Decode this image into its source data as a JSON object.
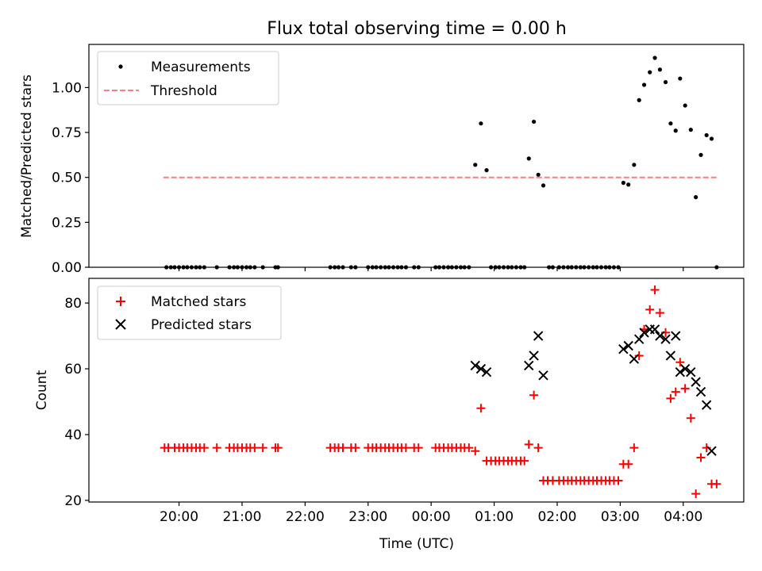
{
  "figure": {
    "title": "Flux total observing time = 0.00 h",
    "xlabel": "Time (UTC)"
  },
  "chart_data": [
    {
      "type": "scatter",
      "title": "Flux total observing time = 0.00 h",
      "ylabel": "Matched/Predicted stars",
      "xlabel": "",
      "x_unit": "hours since 00:00 UTC",
      "xlim": [
        -5.43,
        4.96
      ],
      "ylim": [
        0,
        1.24
      ],
      "yticks": [
        0.0,
        0.25,
        0.5,
        0.75,
        1.0
      ],
      "ytick_labels": [
        "0.00",
        "0.25",
        "0.50",
        "0.75",
        "1.00"
      ],
      "grid": false,
      "legend_position": "top-left",
      "series": [
        {
          "name": "Measurements",
          "kind": "scatter",
          "marker": "dot",
          "color": "#000000",
          "points": [
            [
              -4.2,
              0
            ],
            [
              -4.13,
              0
            ],
            [
              -4.07,
              0
            ],
            [
              -4.0,
              0
            ],
            [
              -3.93,
              0
            ],
            [
              -3.87,
              0
            ],
            [
              -3.8,
              0
            ],
            [
              -3.73,
              0
            ],
            [
              -3.67,
              0
            ],
            [
              -3.6,
              0
            ],
            [
              -3.4,
              0
            ],
            [
              -3.2,
              0
            ],
            [
              -3.13,
              0
            ],
            [
              -3.07,
              0
            ],
            [
              -3.0,
              0
            ],
            [
              -2.93,
              0
            ],
            [
              -2.87,
              0
            ],
            [
              -2.8,
              0
            ],
            [
              -2.67,
              0
            ],
            [
              -2.47,
              0
            ],
            [
              -2.43,
              0
            ],
            [
              -1.6,
              0
            ],
            [
              -1.53,
              0
            ],
            [
              -1.47,
              0
            ],
            [
              -1.4,
              0
            ],
            [
              -1.27,
              0
            ],
            [
              -1.2,
              0
            ],
            [
              -1.0,
              0
            ],
            [
              -0.93,
              0
            ],
            [
              -0.87,
              0
            ],
            [
              -0.8,
              0
            ],
            [
              -0.73,
              0
            ],
            [
              -0.67,
              0
            ],
            [
              -0.6,
              0
            ],
            [
              -0.53,
              0
            ],
            [
              -0.47,
              0
            ],
            [
              -0.4,
              0
            ],
            [
              -0.27,
              0
            ],
            [
              -0.2,
              0
            ],
            [
              0.07,
              0
            ],
            [
              0.13,
              0
            ],
            [
              0.2,
              0
            ],
            [
              0.27,
              0
            ],
            [
              0.33,
              0
            ],
            [
              0.4,
              0
            ],
            [
              0.47,
              0
            ],
            [
              0.53,
              0
            ],
            [
              0.6,
              0
            ],
            [
              0.7,
              0.57
            ],
            [
              0.79,
              0.8
            ],
            [
              0.88,
              0.54
            ],
            [
              0.95,
              0
            ],
            [
              1.02,
              0
            ],
            [
              1.08,
              0
            ],
            [
              1.15,
              0
            ],
            [
              1.22,
              0
            ],
            [
              1.28,
              0
            ],
            [
              1.35,
              0
            ],
            [
              1.42,
              0
            ],
            [
              1.48,
              0
            ],
            [
              1.55,
              0.605
            ],
            [
              1.63,
              0.81
            ],
            [
              1.7,
              0.515
            ],
            [
              1.78,
              0.455
            ],
            [
              1.87,
              0
            ],
            [
              1.93,
              0
            ],
            [
              2.03,
              0
            ],
            [
              2.1,
              0
            ],
            [
              2.17,
              0
            ],
            [
              2.23,
              0
            ],
            [
              2.3,
              0
            ],
            [
              2.37,
              0
            ],
            [
              2.43,
              0
            ],
            [
              2.5,
              0
            ],
            [
              2.57,
              0
            ],
            [
              2.63,
              0
            ],
            [
              2.7,
              0
            ],
            [
              2.77,
              0
            ],
            [
              2.83,
              0
            ],
            [
              2.9,
              0
            ],
            [
              2.97,
              0
            ],
            [
              3.05,
              0.47
            ],
            [
              3.13,
              0.46
            ],
            [
              3.22,
              0.57
            ],
            [
              3.3,
              0.93
            ],
            [
              3.38,
              1.015
            ],
            [
              3.47,
              1.085
            ],
            [
              3.55,
              1.165
            ],
            [
              3.63,
              1.1
            ],
            [
              3.72,
              1.03
            ],
            [
              3.8,
              0.8
            ],
            [
              3.88,
              0.76
            ],
            [
              3.95,
              1.05
            ],
            [
              4.03,
              0.9
            ],
            [
              4.12,
              0.765
            ],
            [
              4.2,
              0.39
            ],
            [
              4.28,
              0.625
            ],
            [
              4.37,
              0.735
            ],
            [
              4.45,
              0.715
            ],
            [
              4.53,
              0
            ]
          ]
        },
        {
          "name": "Threshold",
          "kind": "line",
          "style": "dashed",
          "color": "#ff7f7f",
          "x": [
            -4.25,
            4.55
          ],
          "y": [
            0.5,
            0.5
          ]
        }
      ]
    },
    {
      "type": "scatter",
      "title": "",
      "ylabel": "Count",
      "xlabel": "Time (UTC)",
      "x_unit": "hours since 00:00 UTC",
      "xlim": [
        -5.43,
        4.96
      ],
      "ylim": [
        19.5,
        87.5
      ],
      "yticks": [
        20,
        40,
        60,
        80
      ],
      "ytick_labels": [
        "20",
        "40",
        "60",
        "80"
      ],
      "xticks": [
        -4,
        -3,
        -2,
        -1,
        0,
        1,
        2,
        3,
        4
      ],
      "xtick_labels": [
        "20:00",
        "21:00",
        "22:00",
        "23:00",
        "00:00",
        "01:00",
        "02:00",
        "03:00",
        "04:00"
      ],
      "grid": false,
      "legend_position": "top-left",
      "series": [
        {
          "name": "Matched stars",
          "kind": "scatter",
          "marker": "plus",
          "color": "#ff0000",
          "points": [
            [
              -4.23,
              36
            ],
            [
              -4.17,
              36
            ],
            [
              -4.07,
              36
            ],
            [
              -4.0,
              36
            ],
            [
              -3.93,
              36
            ],
            [
              -3.87,
              36
            ],
            [
              -3.8,
              36
            ],
            [
              -3.73,
              36
            ],
            [
              -3.67,
              36
            ],
            [
              -3.6,
              36
            ],
            [
              -3.4,
              36
            ],
            [
              -3.2,
              36
            ],
            [
              -3.13,
              36
            ],
            [
              -3.07,
              36
            ],
            [
              -3.0,
              36
            ],
            [
              -2.93,
              36
            ],
            [
              -2.87,
              36
            ],
            [
              -2.8,
              36
            ],
            [
              -2.67,
              36
            ],
            [
              -2.47,
              36
            ],
            [
              -2.43,
              36
            ],
            [
              -1.6,
              36
            ],
            [
              -1.53,
              36
            ],
            [
              -1.47,
              36
            ],
            [
              -1.4,
              36
            ],
            [
              -1.27,
              36
            ],
            [
              -1.2,
              36
            ],
            [
              -1.0,
              36
            ],
            [
              -0.93,
              36
            ],
            [
              -0.87,
              36
            ],
            [
              -0.8,
              36
            ],
            [
              -0.73,
              36
            ],
            [
              -0.67,
              36
            ],
            [
              -0.6,
              36
            ],
            [
              -0.53,
              36
            ],
            [
              -0.47,
              36
            ],
            [
              -0.4,
              36
            ],
            [
              -0.27,
              36
            ],
            [
              -0.2,
              36
            ],
            [
              0.07,
              36
            ],
            [
              0.13,
              36
            ],
            [
              0.2,
              36
            ],
            [
              0.27,
              36
            ],
            [
              0.33,
              36
            ],
            [
              0.4,
              36
            ],
            [
              0.47,
              36
            ],
            [
              0.53,
              36
            ],
            [
              0.6,
              36
            ],
            [
              0.7,
              35
            ],
            [
              0.79,
              48
            ],
            [
              0.88,
              32
            ],
            [
              0.95,
              32
            ],
            [
              1.02,
              32
            ],
            [
              1.08,
              32
            ],
            [
              1.15,
              32
            ],
            [
              1.22,
              32
            ],
            [
              1.28,
              32
            ],
            [
              1.35,
              32
            ],
            [
              1.42,
              32
            ],
            [
              1.48,
              32
            ],
            [
              1.55,
              37
            ],
            [
              1.63,
              52
            ],
            [
              1.7,
              36
            ],
            [
              1.78,
              26
            ],
            [
              1.85,
              26
            ],
            [
              1.93,
              26
            ],
            [
              2.03,
              26
            ],
            [
              2.1,
              26
            ],
            [
              2.17,
              26
            ],
            [
              2.23,
              26
            ],
            [
              2.3,
              26
            ],
            [
              2.37,
              26
            ],
            [
              2.43,
              26
            ],
            [
              2.5,
              26
            ],
            [
              2.57,
              26
            ],
            [
              2.63,
              26
            ],
            [
              2.7,
              26
            ],
            [
              2.77,
              26
            ],
            [
              2.83,
              26
            ],
            [
              2.9,
              26
            ],
            [
              2.97,
              26
            ],
            [
              3.05,
              31
            ],
            [
              3.13,
              31
            ],
            [
              3.22,
              36
            ],
            [
              3.3,
              64
            ],
            [
              3.38,
              72
            ],
            [
              3.47,
              78
            ],
            [
              3.55,
              84
            ],
            [
              3.63,
              77
            ],
            [
              3.72,
              71
            ],
            [
              3.8,
              51
            ],
            [
              3.88,
              53
            ],
            [
              3.95,
              62
            ],
            [
              4.03,
              54
            ],
            [
              4.12,
              45
            ],
            [
              4.2,
              22
            ],
            [
              4.28,
              33
            ],
            [
              4.37,
              36
            ],
            [
              4.45,
              25
            ],
            [
              4.53,
              25
            ]
          ]
        },
        {
          "name": "Predicted stars",
          "kind": "scatter",
          "marker": "x",
          "color": "#000000",
          "points": [
            [
              0.7,
              61
            ],
            [
              0.79,
              60
            ],
            [
              0.88,
              59
            ],
            [
              1.55,
              61
            ],
            [
              1.63,
              64
            ],
            [
              1.7,
              70
            ],
            [
              1.78,
              58
            ],
            [
              3.05,
              66
            ],
            [
              3.13,
              67
            ],
            [
              3.22,
              63
            ],
            [
              3.3,
              69
            ],
            [
              3.38,
              71
            ],
            [
              3.47,
              72
            ],
            [
              3.55,
              72
            ],
            [
              3.63,
              70
            ],
            [
              3.72,
              69
            ],
            [
              3.8,
              64
            ],
            [
              3.88,
              70
            ],
            [
              3.95,
              59
            ],
            [
              4.03,
              60
            ],
            [
              4.12,
              59
            ],
            [
              4.2,
              56
            ],
            [
              4.28,
              53
            ],
            [
              4.37,
              49
            ],
            [
              4.45,
              35
            ]
          ]
        }
      ]
    }
  ]
}
